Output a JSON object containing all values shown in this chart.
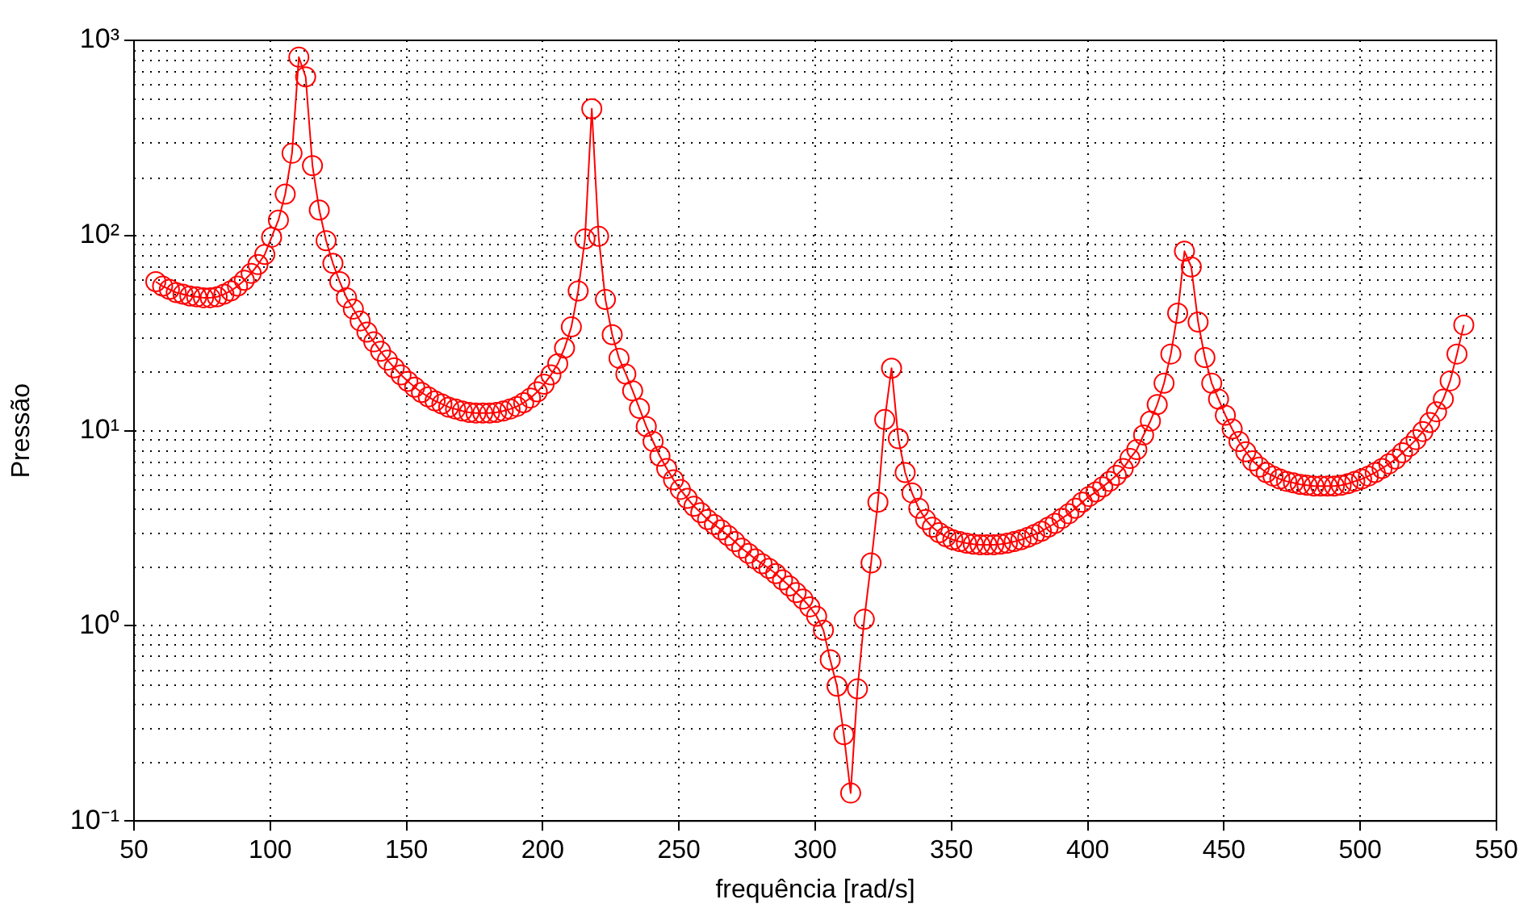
{
  "chart_data": {
    "type": "line",
    "xlabel": "frequência [rad/s]",
    "ylabel": "Pressão",
    "log": "y",
    "grid": true,
    "marker": "circle",
    "line_style": "solid",
    "legend": false,
    "xlim": [
      50,
      550
    ],
    "xticks": [
      50,
      100,
      150,
      200,
      250,
      300,
      350,
      400,
      450,
      500,
      550
    ],
    "ylim": [
      0.1,
      1000
    ],
    "yticks": [
      {
        "value": 0.1,
        "label": "10⁻¹"
      },
      {
        "value": 1,
        "label": "10⁰"
      },
      {
        "value": 10,
        "label": "10¹"
      },
      {
        "value": 100,
        "label": "10²"
      },
      {
        "value": 1000,
        "label": "10³"
      }
    ],
    "x": [
      58,
      60.5,
      63,
      65.5,
      68,
      70.5,
      73,
      75.5,
      78,
      80.5,
      83,
      85.5,
      88,
      90.5,
      93,
      95.5,
      98,
      100.5,
      103,
      105.5,
      108,
      110.5,
      113,
      115.5,
      118,
      120.5,
      123,
      125.5,
      128,
      130.5,
      133,
      135.5,
      138,
      140.5,
      143,
      145.5,
      148,
      150.5,
      153,
      155.5,
      158,
      160.5,
      163,
      165.5,
      168,
      170.5,
      173,
      175.5,
      178,
      180.5,
      183,
      185.5,
      188,
      190.5,
      193,
      195.5,
      198,
      200.5,
      203,
      205.5,
      208,
      210.5,
      213,
      215.5,
      218,
      220.5,
      223,
      225.5,
      228,
      230.5,
      233,
      235.5,
      238,
      240.5,
      243,
      245.5,
      248,
      250.5,
      253,
      255.5,
      258,
      260.5,
      263,
      265.5,
      268,
      270.5,
      273,
      275.5,
      278,
      280.5,
      283,
      285.5,
      288,
      290.5,
      293,
      295.5,
      298,
      300.5,
      303,
      305.5,
      308,
      310.5,
      313,
      315.5,
      318,
      320.5,
      323,
      325.5,
      328,
      330.5,
      333,
      335.5,
      338,
      340.5,
      343,
      345.5,
      348,
      350.5,
      353,
      355.5,
      358,
      360.5,
      363,
      365.5,
      368,
      370.5,
      373,
      375.5,
      378,
      380.5,
      383,
      385.5,
      388,
      390.5,
      393,
      395.5,
      398,
      400.5,
      403,
      405.5,
      408,
      410.5,
      413,
      415.5,
      418,
      420.5,
      423,
      425.5,
      428,
      430.5,
      433,
      435.5,
      438,
      440.5,
      443,
      445.5,
      448,
      450.5,
      453,
      455.5,
      458,
      460.5,
      463,
      465.5,
      468,
      470.5,
      473,
      475.5,
      478,
      480.5,
      483,
      485.5,
      488,
      490.5,
      493,
      495.5,
      498,
      500.5,
      503,
      505.5,
      508,
      510.5,
      513,
      515.5,
      518,
      520.5,
      523,
      525.5,
      528,
      530.5,
      533,
      535.5,
      538
    ],
    "series": [
      {
        "color": "#ff0000",
        "values": [
          58,
          55,
          53,
          51,
          50,
          49,
          48.5,
          48,
          48,
          48.5,
          50,
          52,
          55,
          59,
          64,
          71,
          80,
          98,
          120,
          163,
          264,
          820,
          650,
          228,
          135,
          94,
          72,
          58,
          48,
          42,
          36.5,
          32,
          28.5,
          25.5,
          23,
          21,
          19.3,
          17.9,
          16.7,
          15.7,
          14.9,
          14.2,
          13.7,
          13.2,
          12.9,
          12.6,
          12.4,
          12.3,
          12.3,
          12.3,
          12.4,
          12.6,
          12.9,
          13.3,
          13.9,
          14.7,
          15.8,
          17.3,
          19.3,
          22,
          26.5,
          34,
          52,
          96,
          446,
          99,
          47,
          31,
          23.5,
          19.5,
          16,
          13,
          10.5,
          8.8,
          7.4,
          6.4,
          5.6,
          5,
          4.5,
          4.1,
          3.8,
          3.5,
          3.3,
          3.1,
          2.9,
          2.7,
          2.5,
          2.35,
          2.2,
          2.08,
          1.97,
          1.85,
          1.72,
          1.6,
          1.48,
          1.37,
          1.25,
          1.12,
          0.95,
          0.67,
          0.49,
          0.277,
          0.139,
          0.475,
          1.08,
          2.1,
          4.3,
          11.4,
          20.9,
          9.1,
          6.1,
          4.8,
          4,
          3.5,
          3.2,
          3,
          2.86,
          2.76,
          2.7,
          2.65,
          2.62,
          2.6,
          2.6,
          2.6,
          2.62,
          2.65,
          2.7,
          2.76,
          2.84,
          2.94,
          3.05,
          3.2,
          3.35,
          3.55,
          3.75,
          4,
          4.3,
          4.6,
          4.85,
          5.15,
          5.5,
          5.9,
          6.4,
          7.2,
          8,
          9.5,
          11.2,
          13.6,
          17.5,
          24.7,
          40,
          83,
          69,
          36,
          23.7,
          17.5,
          14.5,
          12,
          10.2,
          8.8,
          7.8,
          7,
          6.5,
          6.1,
          5.85,
          5.65,
          5.5,
          5.4,
          5.3,
          5.25,
          5.2,
          5.2,
          5.2,
          5.2,
          5.25,
          5.35,
          5.5,
          5.65,
          5.85,
          6.1,
          6.4,
          6.75,
          7.15,
          7.7,
          8.3,
          9,
          9.9,
          11,
          12.5,
          14.5,
          18,
          24.7,
          34.8
        ]
      }
    ]
  }
}
